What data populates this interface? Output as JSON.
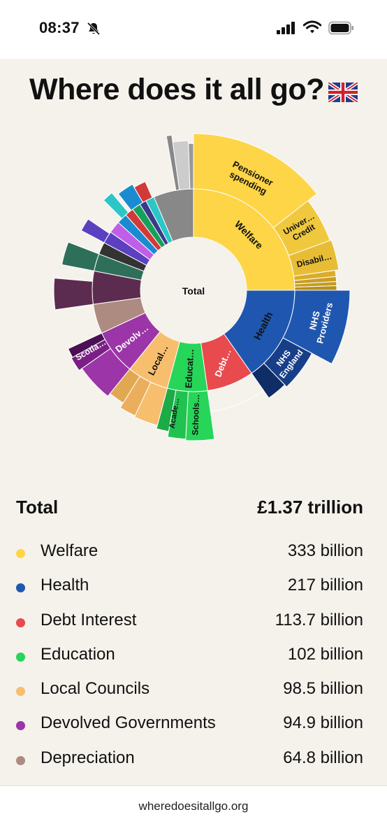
{
  "status_bar": {
    "time": "08:37",
    "icons": [
      "bell-slash-icon",
      "cellular-signal-icon",
      "wifi-icon",
      "battery-icon"
    ]
  },
  "page": {
    "title": "Where does it all go?",
    "flag_icon": "uk-flag-icon"
  },
  "chart_data": {
    "type": "sunburst",
    "center_label": "Total",
    "inner_ring": [
      {
        "label": "Welfare",
        "value": 333,
        "color": "#fdd546"
      },
      {
        "label": "Health",
        "value": 217,
        "color": "#1f57b0"
      },
      {
        "label": "Debt…",
        "value": 113.7,
        "color": "#e84a4e"
      },
      {
        "label": "Educat…",
        "value": 102,
        "color": "#27d559"
      },
      {
        "label": "Local…",
        "value": 98.5,
        "color": "#f7be6d"
      },
      {
        "label": "Devolv…",
        "value": 94.9,
        "color": "#9b35a8"
      },
      {
        "label": "",
        "value": 64.8,
        "color": "#ae8b80"
      }
    ],
    "outer_labels": [
      "Pensioner spending",
      "Univer… Credit",
      "Disabil…",
      "NHS Providers",
      "NHS England",
      "Schools…",
      "Acade…",
      "Scotla…"
    ],
    "colors": {
      "welfare": "#fdd546",
      "health": "#1f57b0",
      "debt": "#e84a4e",
      "education": "#27d559",
      "local": "#f7be6d",
      "devolved": "#9b35a8",
      "depreciation": "#ae8b80",
      "background": "#f5f2ec"
    }
  },
  "summary": {
    "total_label": "Total",
    "total_value": "£1.37 trillion",
    "items": [
      {
        "name": "Welfare",
        "amount": "333 billion",
        "color": "#fdd546"
      },
      {
        "name": "Health",
        "amount": "217 billion",
        "color": "#1f57b0"
      },
      {
        "name": "Debt Interest",
        "amount": "113.7 billion",
        "color": "#e84a4e"
      },
      {
        "name": "Education",
        "amount": "102 billion",
        "color": "#27d559"
      },
      {
        "name": "Local Councils",
        "amount": "98.5 billion",
        "color": "#f7be6d"
      },
      {
        "name": "Devolved Governments",
        "amount": "94.9 billion",
        "color": "#9b35a8"
      },
      {
        "name": "Depreciation",
        "amount": "64.8 billion",
        "color": "#ae8b80"
      }
    ]
  },
  "footer": {
    "url": "wheredoesitallgo.org"
  }
}
